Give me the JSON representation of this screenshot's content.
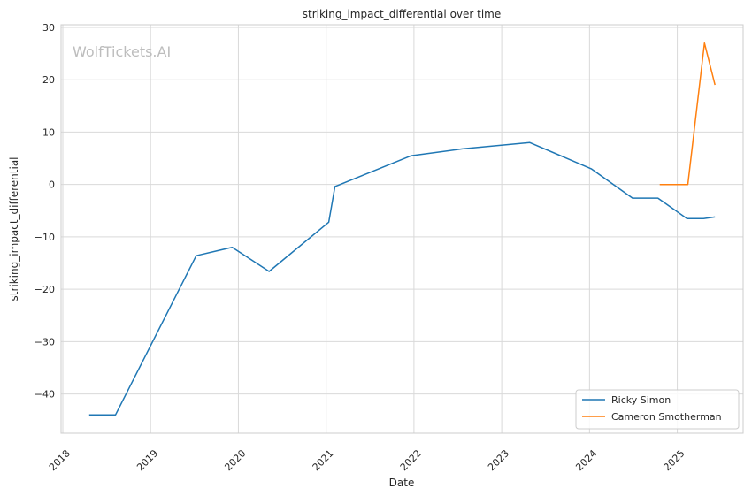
{
  "chart_data": {
    "type": "line",
    "title": "striking_impact_differential over time",
    "xlabel": "Date",
    "ylabel": "striking_impact_differential",
    "watermark": "WolfTickets.AI",
    "xlim": [
      2017.98,
      2025.75
    ],
    "ylim": [
      -47.5,
      30.5
    ],
    "x_ticks": [
      2018,
      2019,
      2020,
      2021,
      2022,
      2023,
      2024,
      2025
    ],
    "x_tick_labels": [
      "2018",
      "2019",
      "2020",
      "2021",
      "2022",
      "2023",
      "2024",
      "2025"
    ],
    "y_ticks": [
      -40,
      -30,
      -20,
      -10,
      0,
      10,
      20,
      30
    ],
    "y_tick_labels": [
      "−40",
      "−30",
      "−20",
      "−10",
      "0",
      "10",
      "20",
      "30"
    ],
    "grid": true,
    "legend": "lower-right",
    "series": [
      {
        "name": "Ricky Simon",
        "color": "#1f77b4",
        "points": [
          [
            2018.3,
            -44
          ],
          [
            2018.6,
            -44
          ],
          [
            2019.52,
            -13.6
          ],
          [
            2019.93,
            -12
          ],
          [
            2020.35,
            -16.6
          ],
          [
            2021.03,
            -7.2
          ],
          [
            2021.1,
            -0.4
          ],
          [
            2021.97,
            5.5
          ],
          [
            2022.55,
            6.8
          ],
          [
            2023.32,
            8
          ],
          [
            2024.02,
            3
          ],
          [
            2024.49,
            -2.6
          ],
          [
            2024.78,
            -2.6
          ],
          [
            2025.11,
            -6.5
          ],
          [
            2025.3,
            -6.5
          ],
          [
            2025.43,
            -6.2
          ]
        ]
      },
      {
        "name": "Cameron Smotherman",
        "color": "#ff7f0e",
        "points": [
          [
            2024.8,
            0
          ],
          [
            2025.12,
            0
          ],
          [
            2025.31,
            27
          ],
          [
            2025.43,
            19
          ]
        ]
      }
    ]
  }
}
